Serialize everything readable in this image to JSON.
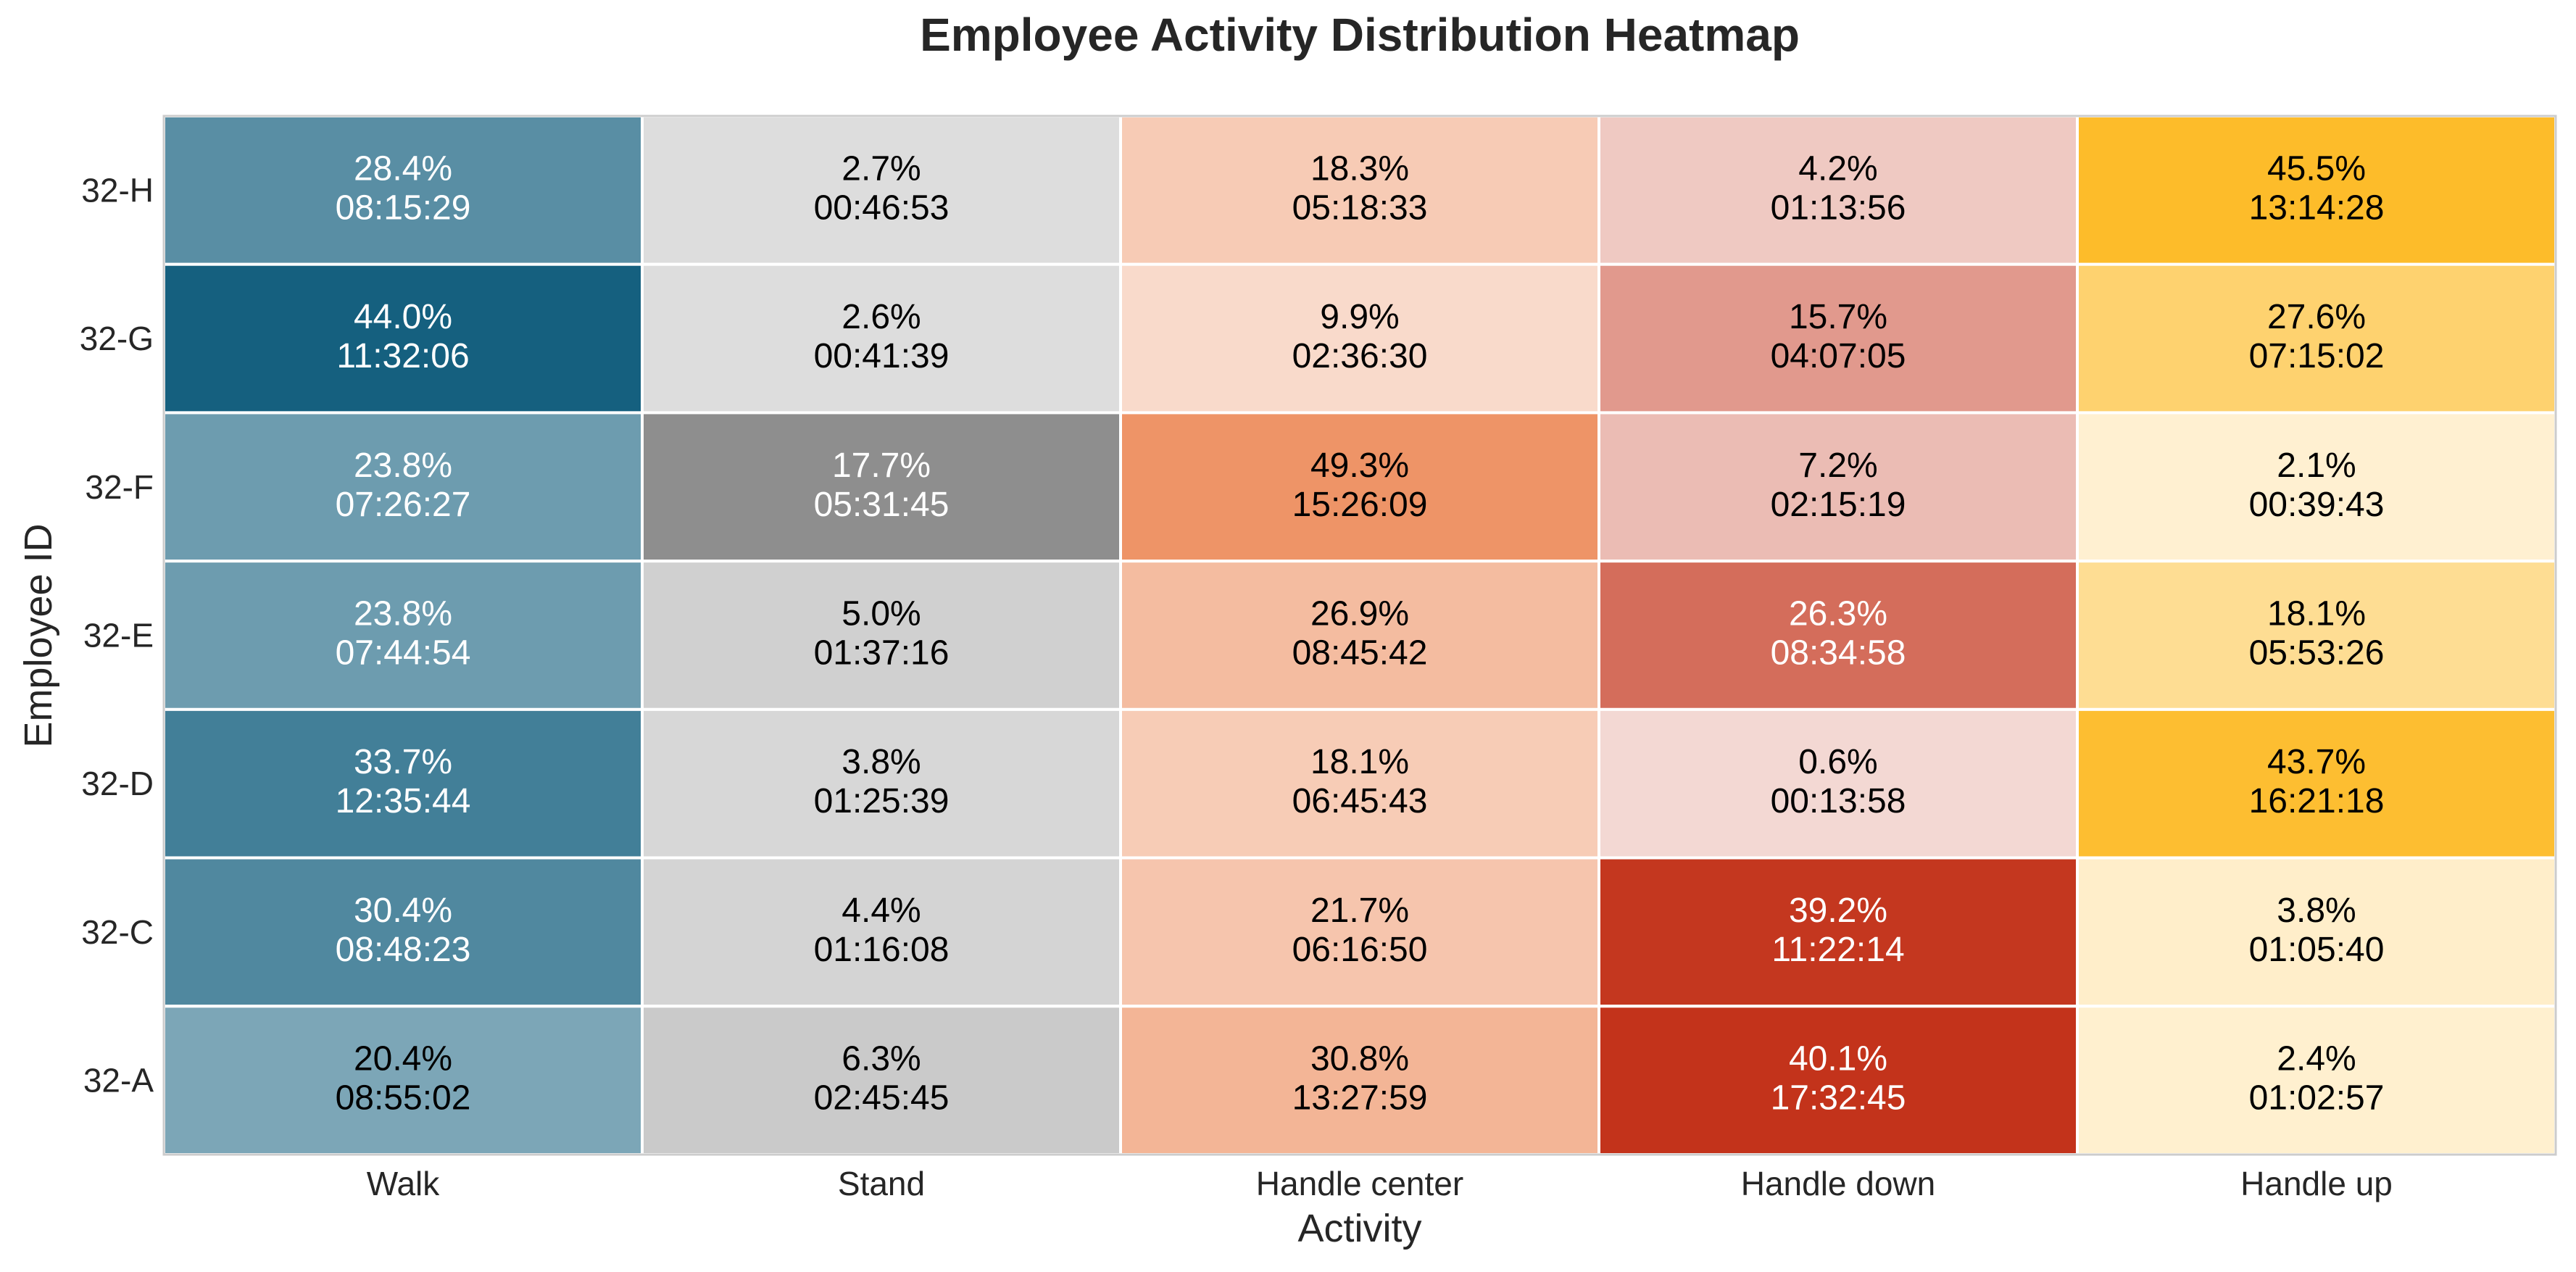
{
  "chart_data": {
    "type": "heatmap",
    "title": "Employee Activity Distribution Heatmap",
    "xlabel": "Activity",
    "ylabel": "Employee ID",
    "columns": [
      "Walk",
      "Stand",
      "Handle center",
      "Handle down",
      "Handle up"
    ],
    "rows": [
      "32-H",
      "32-G",
      "32-F",
      "32-E",
      "32-D",
      "32-C",
      "32-A"
    ],
    "column_colors": [
      "#15607f",
      "#8e8e8e",
      "#ee9467",
      "#c3331b",
      "#fdbc2a"
    ],
    "percent_values": [
      [
        28.4,
        2.7,
        18.3,
        4.2,
        45.5
      ],
      [
        44.0,
        2.6,
        9.9,
        15.7,
        27.6
      ],
      [
        23.8,
        17.7,
        49.3,
        7.2,
        2.1
      ],
      [
        23.8,
        5.0,
        26.9,
        26.3,
        18.1
      ],
      [
        33.7,
        3.8,
        18.1,
        0.6,
        43.7
      ],
      [
        30.4,
        4.4,
        21.7,
        39.2,
        3.8
      ],
      [
        20.4,
        6.3,
        30.8,
        40.1,
        2.4
      ]
    ],
    "cell_labels": [
      [
        [
          "28.4%",
          "08:15:29"
        ],
        [
          "2.7%",
          "00:46:53"
        ],
        [
          "18.3%",
          "05:18:33"
        ],
        [
          "4.2%",
          "01:13:56"
        ],
        [
          "45.5%",
          "13:14:28"
        ]
      ],
      [
        [
          "44.0%",
          "11:32:06"
        ],
        [
          "2.6%",
          "00:41:39"
        ],
        [
          "9.9%",
          "02:36:30"
        ],
        [
          "15.7%",
          "04:07:05"
        ],
        [
          "27.6%",
          "07:15:02"
        ]
      ],
      [
        [
          "23.8%",
          "07:26:27"
        ],
        [
          "17.7%",
          "05:31:45"
        ],
        [
          "49.3%",
          "15:26:09"
        ],
        [
          "7.2%",
          "02:15:19"
        ],
        [
          "2.1%",
          "00:39:43"
        ]
      ],
      [
        [
          "23.8%",
          "07:44:54"
        ],
        [
          "5.0%",
          "01:37:16"
        ],
        [
          "26.9%",
          "08:45:42"
        ],
        [
          "26.3%",
          "08:34:58"
        ],
        [
          "18.1%",
          "05:53:26"
        ]
      ],
      [
        [
          "33.7%",
          "12:35:44"
        ],
        [
          "3.8%",
          "01:25:39"
        ],
        [
          "18.1%",
          "06:45:43"
        ],
        [
          "0.6%",
          "00:13:58"
        ],
        [
          "43.7%",
          "16:21:18"
        ]
      ],
      [
        [
          "30.4%",
          "08:48:23"
        ],
        [
          "4.4%",
          "01:16:08"
        ],
        [
          "21.7%",
          "06:16:50"
        ],
        [
          "39.2%",
          "11:22:14"
        ],
        [
          "3.8%",
          "01:05:40"
        ]
      ],
      [
        [
          "20.4%",
          "08:55:02"
        ],
        [
          "6.3%",
          "02:45:45"
        ],
        [
          "30.8%",
          "13:27:59"
        ],
        [
          "40.1%",
          "17:32:45"
        ],
        [
          "2.4%",
          "01:02:57"
        ]
      ]
    ],
    "grid": false,
    "legend": "none"
  }
}
